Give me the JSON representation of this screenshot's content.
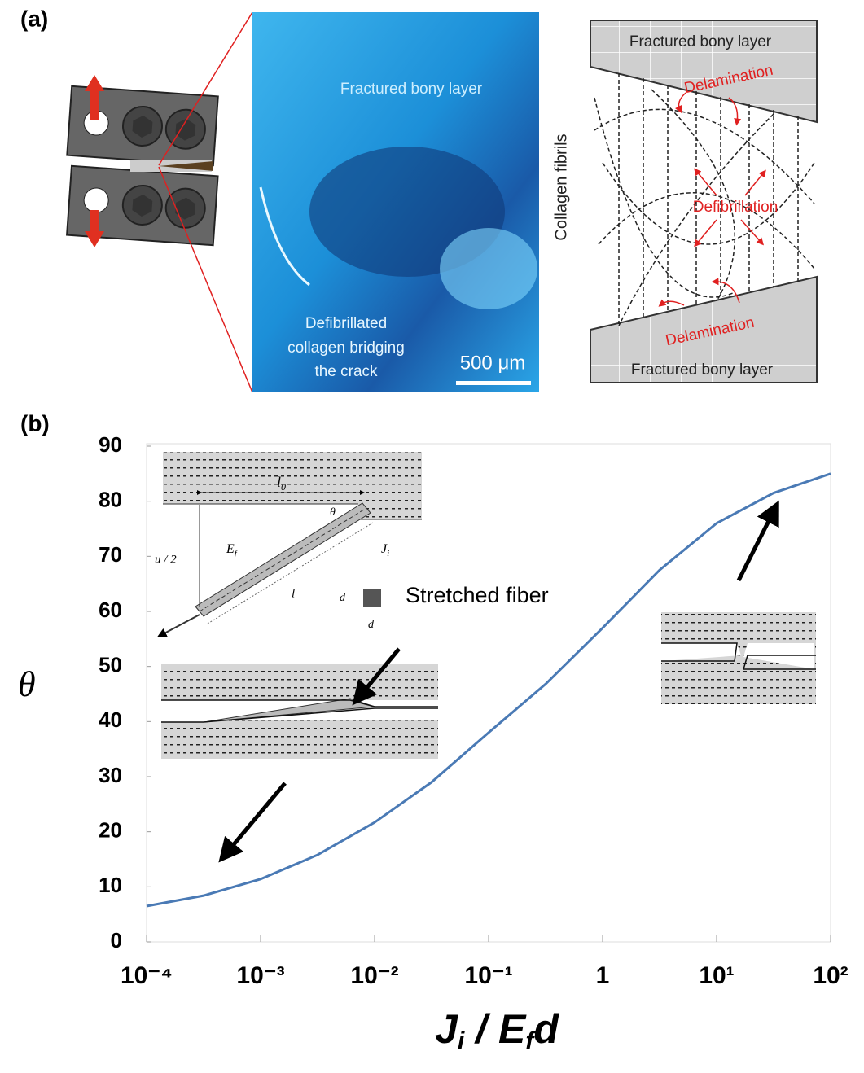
{
  "panel_a": {
    "label": "(a)",
    "photo_top_text": "Fractured bony layer",
    "photo_bottom_text": [
      "Defibrillated",
      "collagen bridging",
      "the crack"
    ],
    "scale_bar": "500 μm",
    "diagram_top_layer": "Fractured bony layer",
    "diagram_top_delamination": "Delamination",
    "diagram_defibrillation": "Defibrillation",
    "diagram_bottom_delamination": "Delamination",
    "diagram_bottom_layer": "Fractured bony layer",
    "diagram_side_label": "Collagen fibrils"
  },
  "chart_data": {
    "type": "line",
    "panel_label": "(b)",
    "y_label": "θ",
    "x_label": [
      "J",
      "i",
      " / E",
      "f",
      "d"
    ],
    "x": [
      0.0001,
      0.000316,
      0.001,
      0.00316,
      0.01,
      0.0316,
      0.1,
      0.316,
      1,
      3.16,
      10,
      31.6,
      100
    ],
    "series": [
      {
        "color": "#4a7ab5",
        "values": [
          6.5,
          8.4,
          11.4,
          15.8,
          21.7,
          29,
          38,
          46.8,
          57,
          67.5,
          76,
          81.5,
          85
        ]
      }
    ],
    "xscale": "log",
    "xlim": [
      0.0001,
      100
    ],
    "xticks": [
      {
        "value": 0.0001,
        "label": "10⁻⁴"
      },
      {
        "value": 0.001,
        "label": "10⁻³"
      },
      {
        "value": 0.01,
        "label": "10⁻²"
      },
      {
        "value": 0.1,
        "label": "10⁻¹"
      },
      1,
      {
        "value": 10,
        "label": "10¹"
      },
      {
        "value": 100,
        "label": "10²"
      }
    ],
    "ylim": [
      0,
      90
    ],
    "yticks": [
      0,
      10,
      20,
      30,
      40,
      50,
      60,
      70,
      80,
      90
    ],
    "annotation": "Stretched fiber",
    "inset_labels": {
      "l0": [
        "l",
        "0"
      ],
      "theta": "θ",
      "ef": [
        "E",
        "f"
      ],
      "ji": [
        "J",
        "i"
      ],
      "u2": "u / 2",
      "l": "l",
      "d_side": "d",
      "d_bottom": "d"
    }
  }
}
